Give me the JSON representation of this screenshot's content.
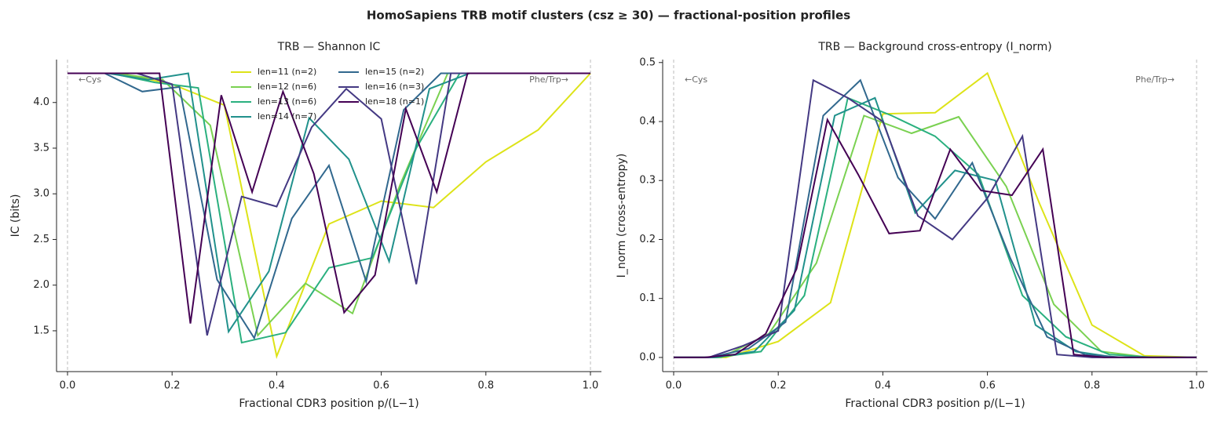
{
  "title": "HomoSapiens TRB motif clusters (csz ≥ 30) — fractional-position profiles",
  "chart_data": [
    {
      "type": "line",
      "title": "TRB — Shannon IC",
      "xlabel": "Fractional CDR3 position  p/(L−1)",
      "ylabel": "IC (bits)",
      "xlim": [
        -0.021,
        1.021
      ],
      "ylim": [
        1.053,
        4.47
      ],
      "xticks": [
        {
          "value": 0,
          "label": "0.0"
        },
        0.2,
        0.4,
        0.6,
        0.8,
        {
          "value": 1,
          "label": "1.0"
        }
      ],
      "yticks": [
        1.5,
        {
          "value": 2,
          "label": "2.0"
        },
        2.5,
        {
          "value": 3,
          "label": "3.0"
        },
        3.5,
        {
          "value": 4,
          "label": "4.0"
        }
      ],
      "vlines": [
        0,
        1
      ],
      "annotations": [
        "←Cys",
        "Phe/Trp→"
      ],
      "legend": "upper center",
      "series": [
        {
          "name": "len=11 (n=2)",
          "color": "#dde318",
          "x": [
            0,
            0.1,
            0.2,
            0.3,
            0.4,
            0.5,
            0.6,
            0.7,
            0.8,
            0.9,
            1
          ],
          "values": [
            4.32,
            4.32,
            4.2,
            3.97,
            1.22,
            2.67,
            2.92,
            2.85,
            3.35,
            3.7,
            4.32
          ]
        },
        {
          "name": "len=12 (n=6)",
          "color": "#7ad151",
          "x": [
            0,
            0.091,
            0.182,
            0.273,
            0.364,
            0.455,
            0.545,
            0.636,
            0.727,
            0.818,
            0.909,
            1
          ],
          "values": [
            4.32,
            4.32,
            4.25,
            3.75,
            1.45,
            2.02,
            1.69,
            3.1,
            4.32,
            4.32,
            4.32,
            4.32
          ]
        },
        {
          "name": "len=13 (n=6)",
          "color": "#2ab07f",
          "x": [
            0,
            0.083,
            0.167,
            0.25,
            0.333,
            0.417,
            0.5,
            0.583,
            0.667,
            0.75,
            0.833,
            0.917,
            1
          ],
          "values": [
            4.32,
            4.32,
            4.22,
            4.16,
            1.37,
            1.48,
            2.19,
            2.3,
            3.5,
            4.32,
            4.32,
            4.32,
            4.32
          ]
        },
        {
          "name": "len=14 (n=7)",
          "color": "#21918c",
          "x": [
            0,
            0.077,
            0.154,
            0.231,
            0.308,
            0.385,
            0.462,
            0.538,
            0.615,
            0.692,
            0.769,
            0.846,
            0.923,
            1
          ],
          "values": [
            4.32,
            4.32,
            4.25,
            4.32,
            1.49,
            2.15,
            3.83,
            3.38,
            2.26,
            4.15,
            4.32,
            4.32,
            4.32,
            4.32
          ]
        },
        {
          "name": "len=15 (n=2)",
          "color": "#31688e",
          "x": [
            0,
            0.071,
            0.143,
            0.214,
            0.286,
            0.357,
            0.429,
            0.5,
            0.571,
            0.643,
            0.714,
            0.786,
            0.857,
            0.929,
            1
          ],
          "values": [
            4.32,
            4.32,
            4.12,
            4.17,
            2.06,
            1.42,
            2.73,
            3.31,
            2.04,
            3.92,
            4.32,
            4.32,
            4.32,
            4.32,
            4.32
          ]
        },
        {
          "name": "len=16 (n=3)",
          "color": "#443983",
          "x": [
            0,
            0.067,
            0.133,
            0.2,
            0.267,
            0.333,
            0.4,
            0.467,
            0.533,
            0.6,
            0.667,
            0.733,
            0.8,
            0.867,
            0.933,
            1
          ],
          "values": [
            4.32,
            4.32,
            4.32,
            4.2,
            1.45,
            2.97,
            2.86,
            3.73,
            4.15,
            3.82,
            2.01,
            4.32,
            4.32,
            4.32,
            4.32,
            4.32
          ]
        },
        {
          "name": "len=18 (n=1)",
          "color": "#440154",
          "x": [
            0,
            0.059,
            0.118,
            0.176,
            0.235,
            0.294,
            0.353,
            0.412,
            0.471,
            0.529,
            0.588,
            0.647,
            0.706,
            0.765,
            0.824,
            0.882,
            0.941,
            1
          ],
          "values": [
            4.32,
            4.32,
            4.32,
            4.32,
            1.58,
            4.08,
            3.02,
            4.12,
            3.22,
            1.7,
            2.11,
            3.93,
            3.02,
            4.32,
            4.32,
            4.32,
            4.32,
            4.32
          ]
        }
      ]
    },
    {
      "type": "line",
      "title": "TRB — Background cross-entropy (I_norm)",
      "xlabel": "Fractional CDR3 position  p/(L−1)",
      "ylabel": "I_norm (cross-entropy)",
      "xlim": [
        -0.021,
        1.021
      ],
      "ylim": [
        -0.024,
        0.505
      ],
      "xticks": [
        {
          "value": 0,
          "label": "0.0"
        },
        0.2,
        0.4,
        0.6,
        0.8,
        {
          "value": 1,
          "label": "1.0"
        }
      ],
      "yticks": [
        {
          "value": 0,
          "label": "0.0"
        },
        0.1,
        0.2,
        0.3,
        0.4,
        0.5
      ],
      "vlines": [
        0,
        1
      ],
      "annotations": [
        "←Cys",
        "Phe/Trp→"
      ],
      "series": [
        {
          "color": "#dde318",
          "x": [
            0,
            0.1,
            0.2,
            0.3,
            0.4,
            0.5,
            0.6,
            0.7,
            0.8,
            0.9,
            1
          ],
          "values": [
            0,
            0,
            0.027,
            0.093,
            0.413,
            0.415,
            0.482,
            0.26,
            0.055,
            0.003,
            0
          ]
        },
        {
          "color": "#7ad151",
          "x": [
            0,
            0.091,
            0.182,
            0.273,
            0.364,
            0.455,
            0.545,
            0.636,
            0.727,
            0.818,
            0.909,
            1
          ],
          "values": [
            0,
            0,
            0.04,
            0.16,
            0.41,
            0.38,
            0.408,
            0.29,
            0.09,
            0.01,
            0,
            0
          ]
        },
        {
          "color": "#2ab07f",
          "x": [
            0,
            0.083,
            0.167,
            0.25,
            0.333,
            0.417,
            0.5,
            0.583,
            0.667,
            0.75,
            0.833,
            0.917,
            1
          ],
          "values": [
            0,
            0,
            0.01,
            0.105,
            0.44,
            0.41,
            0.375,
            0.31,
            0.105,
            0.035,
            0.005,
            0,
            0
          ]
        },
        {
          "color": "#21918c",
          "x": [
            0,
            0.077,
            0.154,
            0.231,
            0.308,
            0.385,
            0.462,
            0.538,
            0.615,
            0.692,
            0.769,
            0.846,
            0.923,
            1
          ],
          "values": [
            0,
            0,
            0.01,
            0.08,
            0.41,
            0.44,
            0.245,
            0.317,
            0.3,
            0.055,
            0.01,
            0,
            0,
            0
          ]
        },
        {
          "color": "#31688e",
          "x": [
            0,
            0.071,
            0.143,
            0.214,
            0.286,
            0.357,
            0.429,
            0.5,
            0.571,
            0.643,
            0.714,
            0.786,
            0.857,
            0.929,
            1
          ],
          "values": [
            0,
            0,
            0.015,
            0.06,
            0.41,
            0.47,
            0.305,
            0.235,
            0.33,
            0.17,
            0.035,
            0.005,
            0,
            0,
            0
          ]
        },
        {
          "color": "#443983",
          "x": [
            0,
            0.067,
            0.133,
            0.2,
            0.267,
            0.333,
            0.4,
            0.467,
            0.533,
            0.6,
            0.667,
            0.733,
            0.8,
            0.867,
            0.933,
            1
          ],
          "values": [
            0,
            0,
            0.02,
            0.045,
            0.47,
            0.44,
            0.4,
            0.24,
            0.2,
            0.27,
            0.375,
            0.005,
            0,
            0,
            0,
            0
          ]
        },
        {
          "color": "#440154",
          "x": [
            0,
            0.059,
            0.118,
            0.176,
            0.235,
            0.294,
            0.353,
            0.412,
            0.471,
            0.529,
            0.588,
            0.647,
            0.706,
            0.765,
            0.824,
            0.882,
            0.941,
            1
          ],
          "values": [
            0,
            0,
            0.005,
            0.04,
            0.15,
            0.403,
            0.31,
            0.21,
            0.215,
            0.353,
            0.283,
            0.275,
            0.353,
            0.005,
            0,
            0,
            0,
            0
          ]
        }
      ]
    }
  ]
}
